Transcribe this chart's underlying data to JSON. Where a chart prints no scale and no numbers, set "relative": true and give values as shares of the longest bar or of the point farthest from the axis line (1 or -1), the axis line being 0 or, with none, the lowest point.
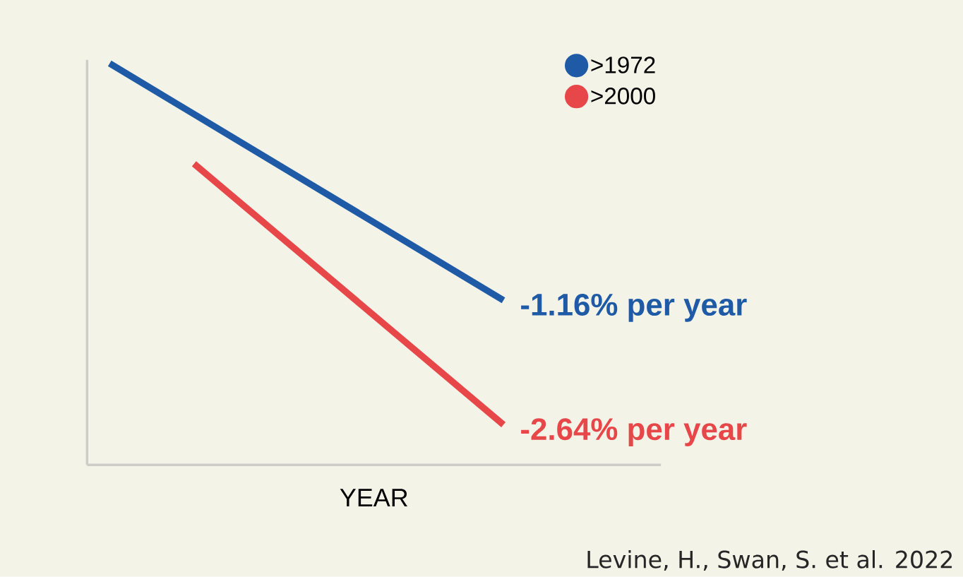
{
  "chart_data": {
    "type": "line",
    "relative": true,
    "xlabel": "YEAR",
    "categories": [
      null,
      null,
      null,
      null,
      null,
      null,
      null,
      null,
      null,
      null,
      null,
      null,
      null,
      null,
      null,
      null,
      null,
      null,
      null,
      null
    ],
    "series": [
      {
        "name": ">1972",
        "color": "#1f5aa6",
        "values": [
          1,
          null,
          null,
          null,
          null,
          null,
          null,
          null,
          null,
          null,
          null,
          null,
          null,
          null,
          0.41,
          null,
          null,
          null,
          null,
          null
        ]
      },
      {
        "name": ">2000",
        "color": "#e8474a",
        "values": [
          null,
          null,
          null,
          0.75,
          null,
          null,
          null,
          null,
          null,
          null,
          null,
          null,
          null,
          null,
          0.1,
          null,
          null,
          null,
          null,
          null
        ]
      }
    ],
    "annotations": [
      "-1.16% per year",
      "-2.64% per year",
      "Levine, H., Swan, S. et al. 2022"
    ],
    "legend": "top right",
    "marker": "none",
    "line_style": "solid"
  }
}
